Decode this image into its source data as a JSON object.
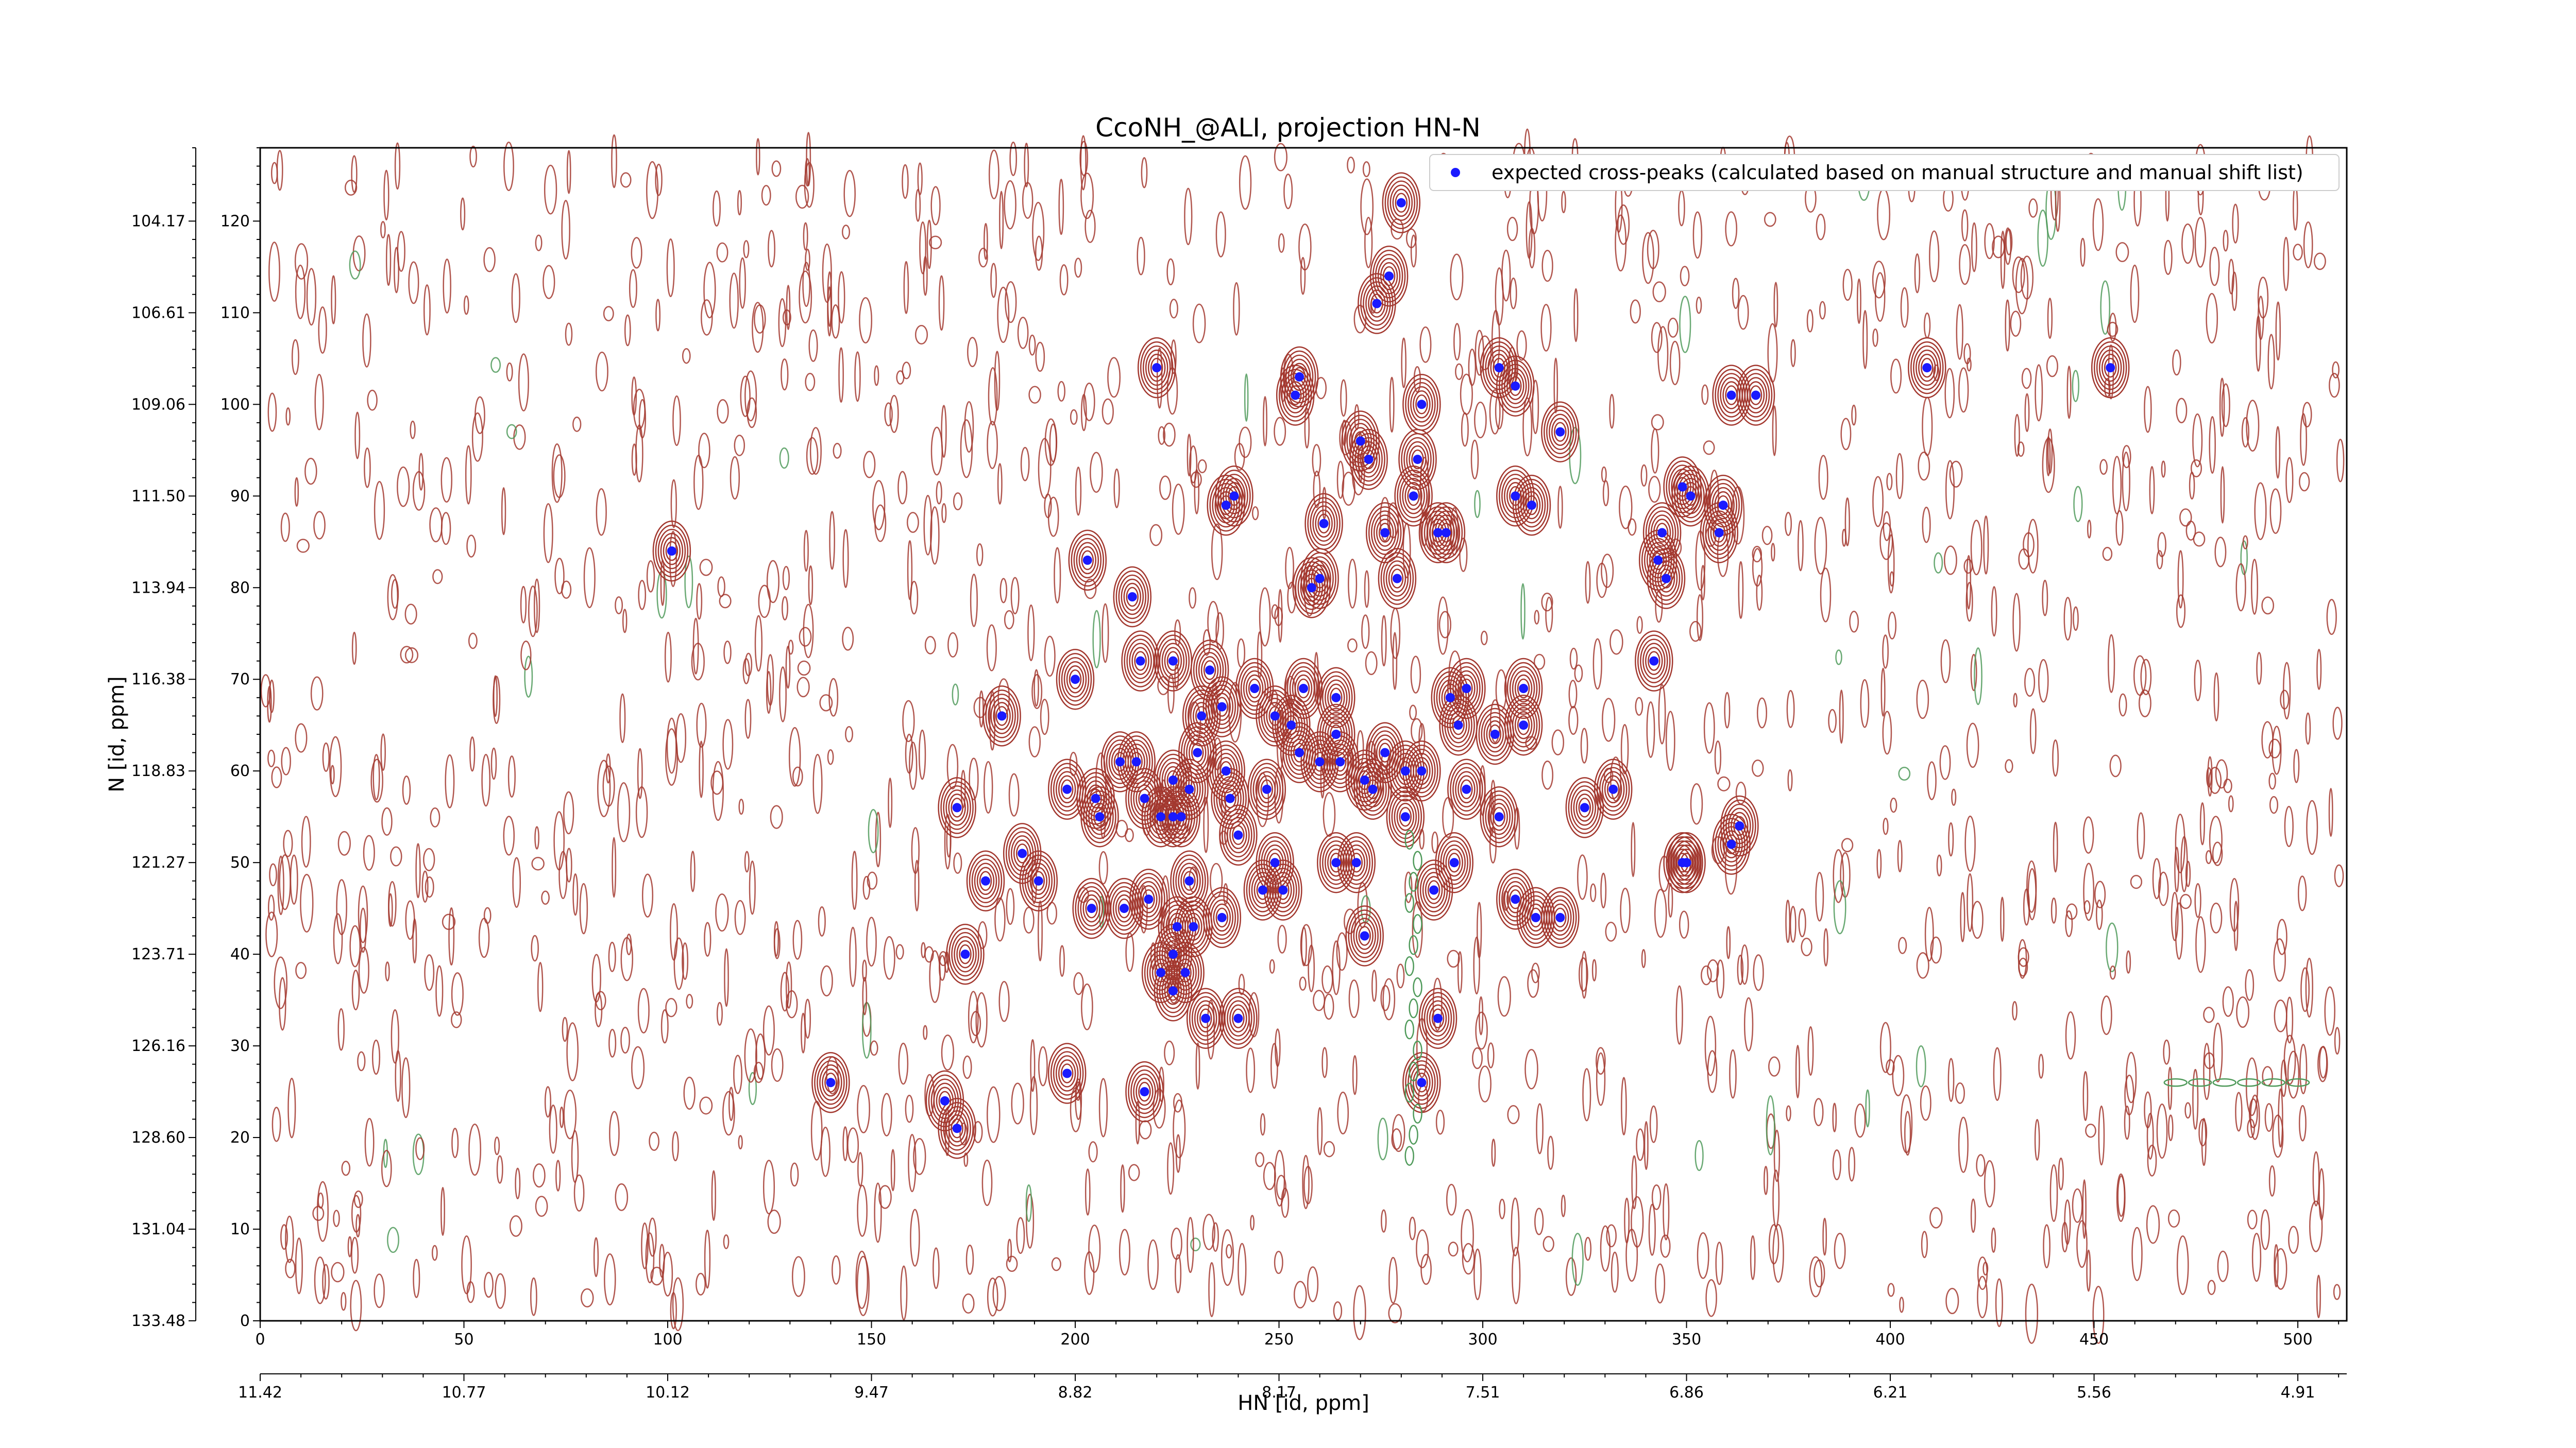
{
  "chart_data": {
    "type": "scatter",
    "title": "CcoNH_@ALI, projection HN-N",
    "xlabel": "HN [id, ppm]",
    "ylabel": "N [id, ppm]",
    "xlim": [
      0,
      512
    ],
    "ylim": [
      0,
      128
    ],
    "x_ticks_index": [
      "0",
      "50",
      "100",
      "150",
      "200",
      "250",
      "300",
      "350",
      "400",
      "450",
      "500"
    ],
    "x_ticks_ppm": [
      "11.42",
      "10.77",
      "10.12",
      "9.47",
      "8.82",
      "8.17",
      "7.51",
      "6.86",
      "6.21",
      "5.56",
      "4.91"
    ],
    "y_ticks_index": [
      "0",
      "10",
      "20",
      "30",
      "40",
      "50",
      "60",
      "70",
      "80",
      "90",
      "100",
      "110",
      "120"
    ],
    "y_ticks_ppm": [
      "133.48",
      "131.04",
      "128.60",
      "126.16",
      "123.71",
      "121.27",
      "118.83",
      "116.38",
      "113.94",
      "111.50",
      "109.06",
      "106.61",
      "104.17"
    ],
    "legend": {
      "position": "top-right",
      "label": "expected cross-peaks (calculated based on manual structure and manual shift list)"
    },
    "grid": false,
    "colors": {
      "peak_marker": "#1a1aff",
      "positive_contour": "#a3382f",
      "negative_contour": "#4f9a5a"
    },
    "series": [
      {
        "name": "expected cross-peaks (calculated based on manual structure and manual shift list)",
        "points": [
          [
            280,
            122
          ],
          [
            277,
            114
          ],
          [
            274,
            111
          ],
          [
            220,
            104
          ],
          [
            255,
            103
          ],
          [
            254,
            101
          ],
          [
            304,
            104
          ],
          [
            308,
            102
          ],
          [
            285,
            100
          ],
          [
            367,
            101
          ],
          [
            361,
            101
          ],
          [
            409,
            104
          ],
          [
            454,
            104
          ],
          [
            319,
            97
          ],
          [
            270,
            96
          ],
          [
            272,
            94
          ],
          [
            284,
            94
          ],
          [
            237,
            89
          ],
          [
            239,
            90
          ],
          [
            283,
            90
          ],
          [
            308,
            90
          ],
          [
            312,
            89
          ],
          [
            349,
            91
          ],
          [
            359,
            89
          ],
          [
            351,
            90
          ],
          [
            261,
            87
          ],
          [
            276,
            86
          ],
          [
            289,
            86
          ],
          [
            291,
            86
          ],
          [
            344,
            86
          ],
          [
            343,
            83
          ],
          [
            345,
            81
          ],
          [
            358,
            86
          ],
          [
            101,
            84
          ],
          [
            203,
            83
          ],
          [
            214,
            79
          ],
          [
            260,
            81
          ],
          [
            258,
            80
          ],
          [
            279,
            81
          ],
          [
            216,
            72
          ],
          [
            224,
            72
          ],
          [
            233,
            71
          ],
          [
            200,
            70
          ],
          [
            244,
            69
          ],
          [
            256,
            69
          ],
          [
            264,
            68
          ],
          [
            296,
            69
          ],
          [
            292,
            68
          ],
          [
            310,
            69
          ],
          [
            342,
            72
          ],
          [
            231,
            66
          ],
          [
            182,
            66
          ],
          [
            236,
            67
          ],
          [
            249,
            66
          ],
          [
            253,
            65
          ],
          [
            264,
            64
          ],
          [
            294,
            65
          ],
          [
            303,
            64
          ],
          [
            310,
            65
          ],
          [
            276,
            62
          ],
          [
            224,
            59
          ],
          [
            215,
            61
          ],
          [
            230,
            62
          ],
          [
            211,
            61
          ],
          [
            237,
            60
          ],
          [
            255,
            62
          ],
          [
            260,
            61
          ],
          [
            265,
            61
          ],
          [
            271,
            59
          ],
          [
            281,
            60
          ],
          [
            285,
            60
          ],
          [
            198,
            58
          ],
          [
            205,
            57
          ],
          [
            217,
            57
          ],
          [
            228,
            58
          ],
          [
            238,
            57
          ],
          [
            247,
            58
          ],
          [
            273,
            58
          ],
          [
            296,
            58
          ],
          [
            332,
            58
          ],
          [
            221,
            55
          ],
          [
            226,
            55
          ],
          [
            171,
            56
          ],
          [
            206,
            55
          ],
          [
            224,
            55
          ],
          [
            240,
            53
          ],
          [
            281,
            55
          ],
          [
            304,
            55
          ],
          [
            325,
            56
          ],
          [
            363,
            54
          ],
          [
            187,
            51
          ],
          [
            249,
            50
          ],
          [
            264,
            50
          ],
          [
            269,
            50
          ],
          [
            293,
            50
          ],
          [
            349,
            50
          ],
          [
            361,
            52
          ],
          [
            350,
            50
          ],
          [
            178,
            48
          ],
          [
            191,
            48
          ],
          [
            228,
            48
          ],
          [
            251,
            47
          ],
          [
            246,
            47
          ],
          [
            288,
            47
          ],
          [
            308,
            46
          ],
          [
            319,
            44
          ],
          [
            204,
            45
          ],
          [
            212,
            45
          ],
          [
            218,
            46
          ],
          [
            225,
            43
          ],
          [
            229,
            43
          ],
          [
            236,
            44
          ],
          [
            271,
            42
          ],
          [
            313,
            44
          ],
          [
            173,
            40
          ],
          [
            224,
            40
          ],
          [
            221,
            38
          ],
          [
            227,
            38
          ],
          [
            224,
            36
          ],
          [
            240,
            33
          ],
          [
            232,
            33
          ],
          [
            289,
            33
          ],
          [
            140,
            26
          ],
          [
            198,
            27
          ],
          [
            217,
            25
          ],
          [
            285,
            26
          ],
          [
            168,
            24
          ],
          [
            171,
            21
          ]
        ]
      }
    ]
  }
}
